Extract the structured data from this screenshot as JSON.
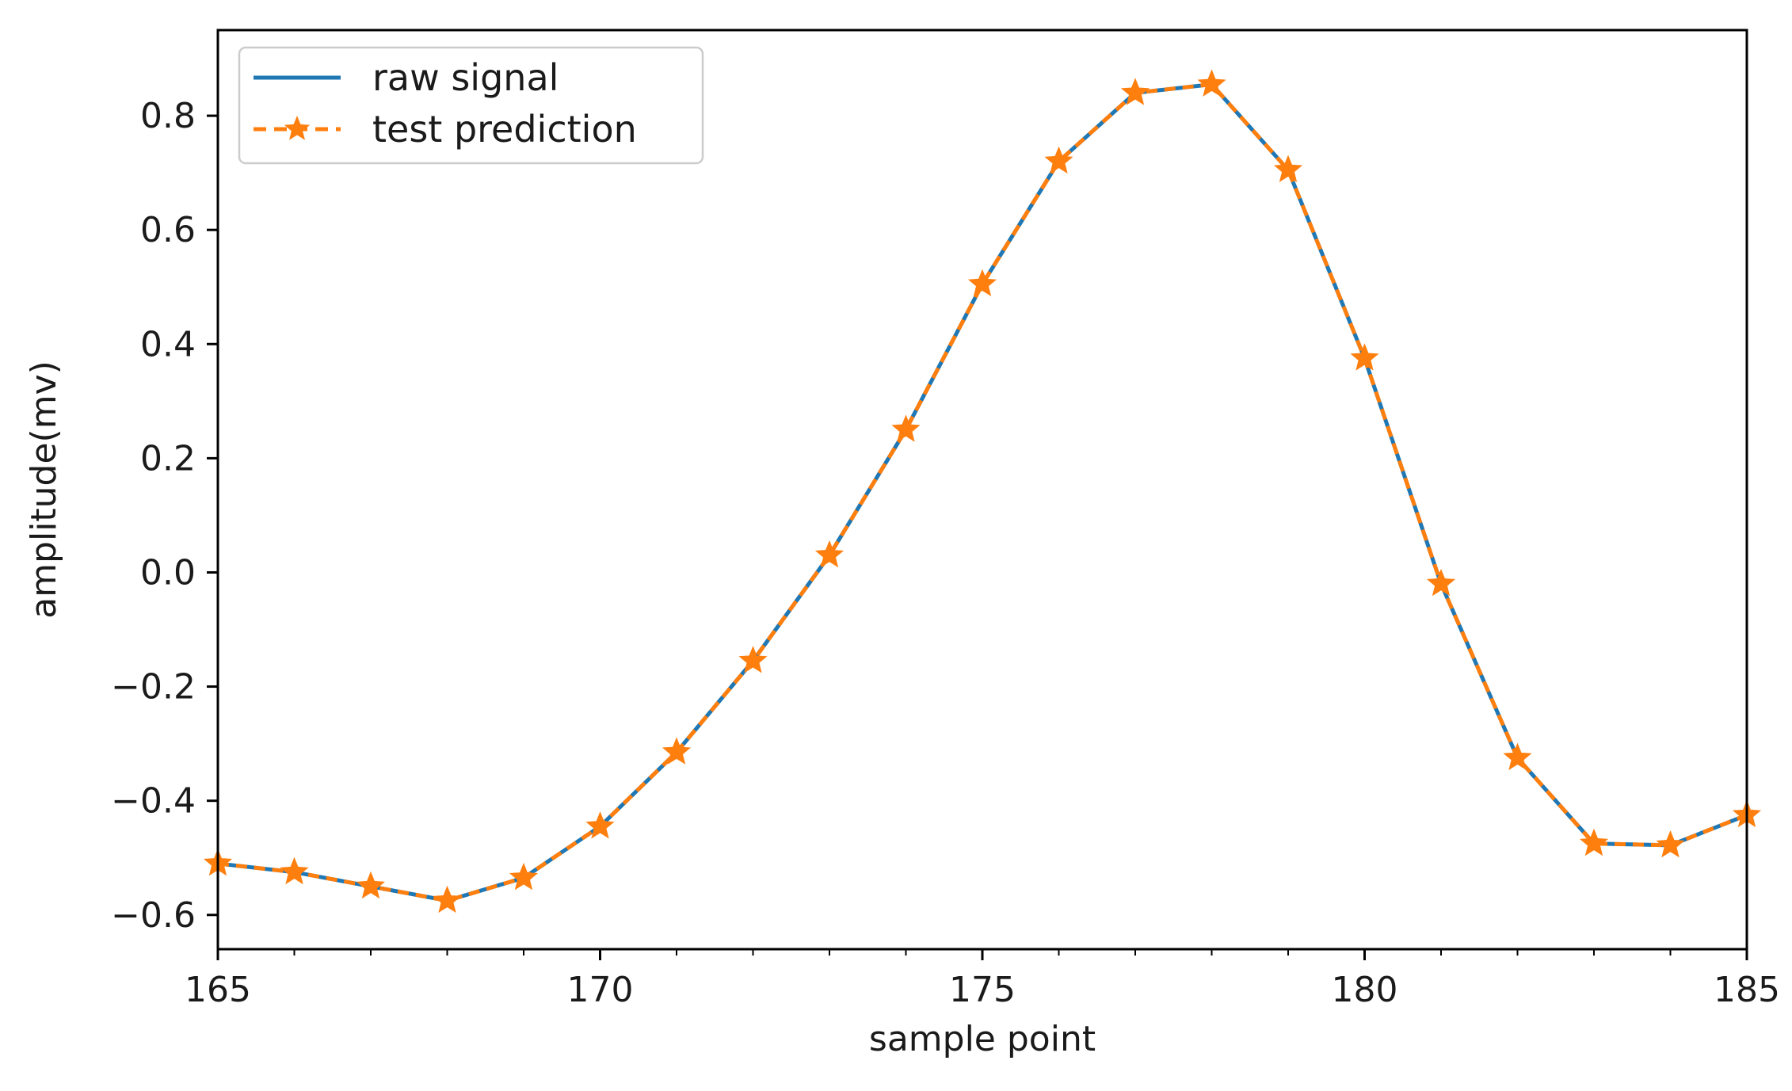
{
  "chart_data": {
    "type": "line",
    "title": "",
    "xlabel": "sample point",
    "ylabel": "amplitude(mv)",
    "xlim": [
      165,
      185
    ],
    "ylim": [
      -0.66,
      0.95
    ],
    "grid": false,
    "legend_position": "top-left",
    "x_ticks": [
      165,
      170,
      175,
      180,
      185
    ],
    "x_tick_labels": [
      "165",
      "170",
      "175",
      "180",
      "185"
    ],
    "y_ticks": [
      -0.6,
      -0.4,
      -0.2,
      0.0,
      0.2,
      0.4,
      0.6,
      0.8
    ],
    "y_tick_labels": [
      "−0.6",
      "−0.4",
      "−0.2",
      "0.0",
      "0.2",
      "0.4",
      "0.6",
      "0.8"
    ],
    "x": [
      165,
      166,
      167,
      168,
      169,
      170,
      171,
      172,
      173,
      174,
      175,
      176,
      177,
      178,
      179,
      180,
      181,
      182,
      183,
      184,
      185
    ],
    "series": [
      {
        "name": "raw signal",
        "color": "#1f77b4",
        "style": "solid",
        "marker": "none",
        "values": [
          -0.51,
          -0.525,
          -0.55,
          -0.575,
          -0.535,
          -0.445,
          -0.315,
          -0.155,
          0.03,
          0.25,
          0.505,
          0.72,
          0.84,
          0.855,
          0.705,
          0.375,
          -0.02,
          -0.325,
          -0.475,
          -0.478,
          -0.425
        ]
      },
      {
        "name": "test prediction",
        "color": "#ff7f0e",
        "style": "dashed",
        "marker": "star",
        "values": [
          -0.51,
          -0.525,
          -0.55,
          -0.575,
          -0.535,
          -0.445,
          -0.315,
          -0.155,
          0.03,
          0.25,
          0.505,
          0.72,
          0.84,
          0.855,
          0.705,
          0.375,
          -0.02,
          -0.325,
          -0.475,
          -0.478,
          -0.425
        ]
      }
    ]
  }
}
